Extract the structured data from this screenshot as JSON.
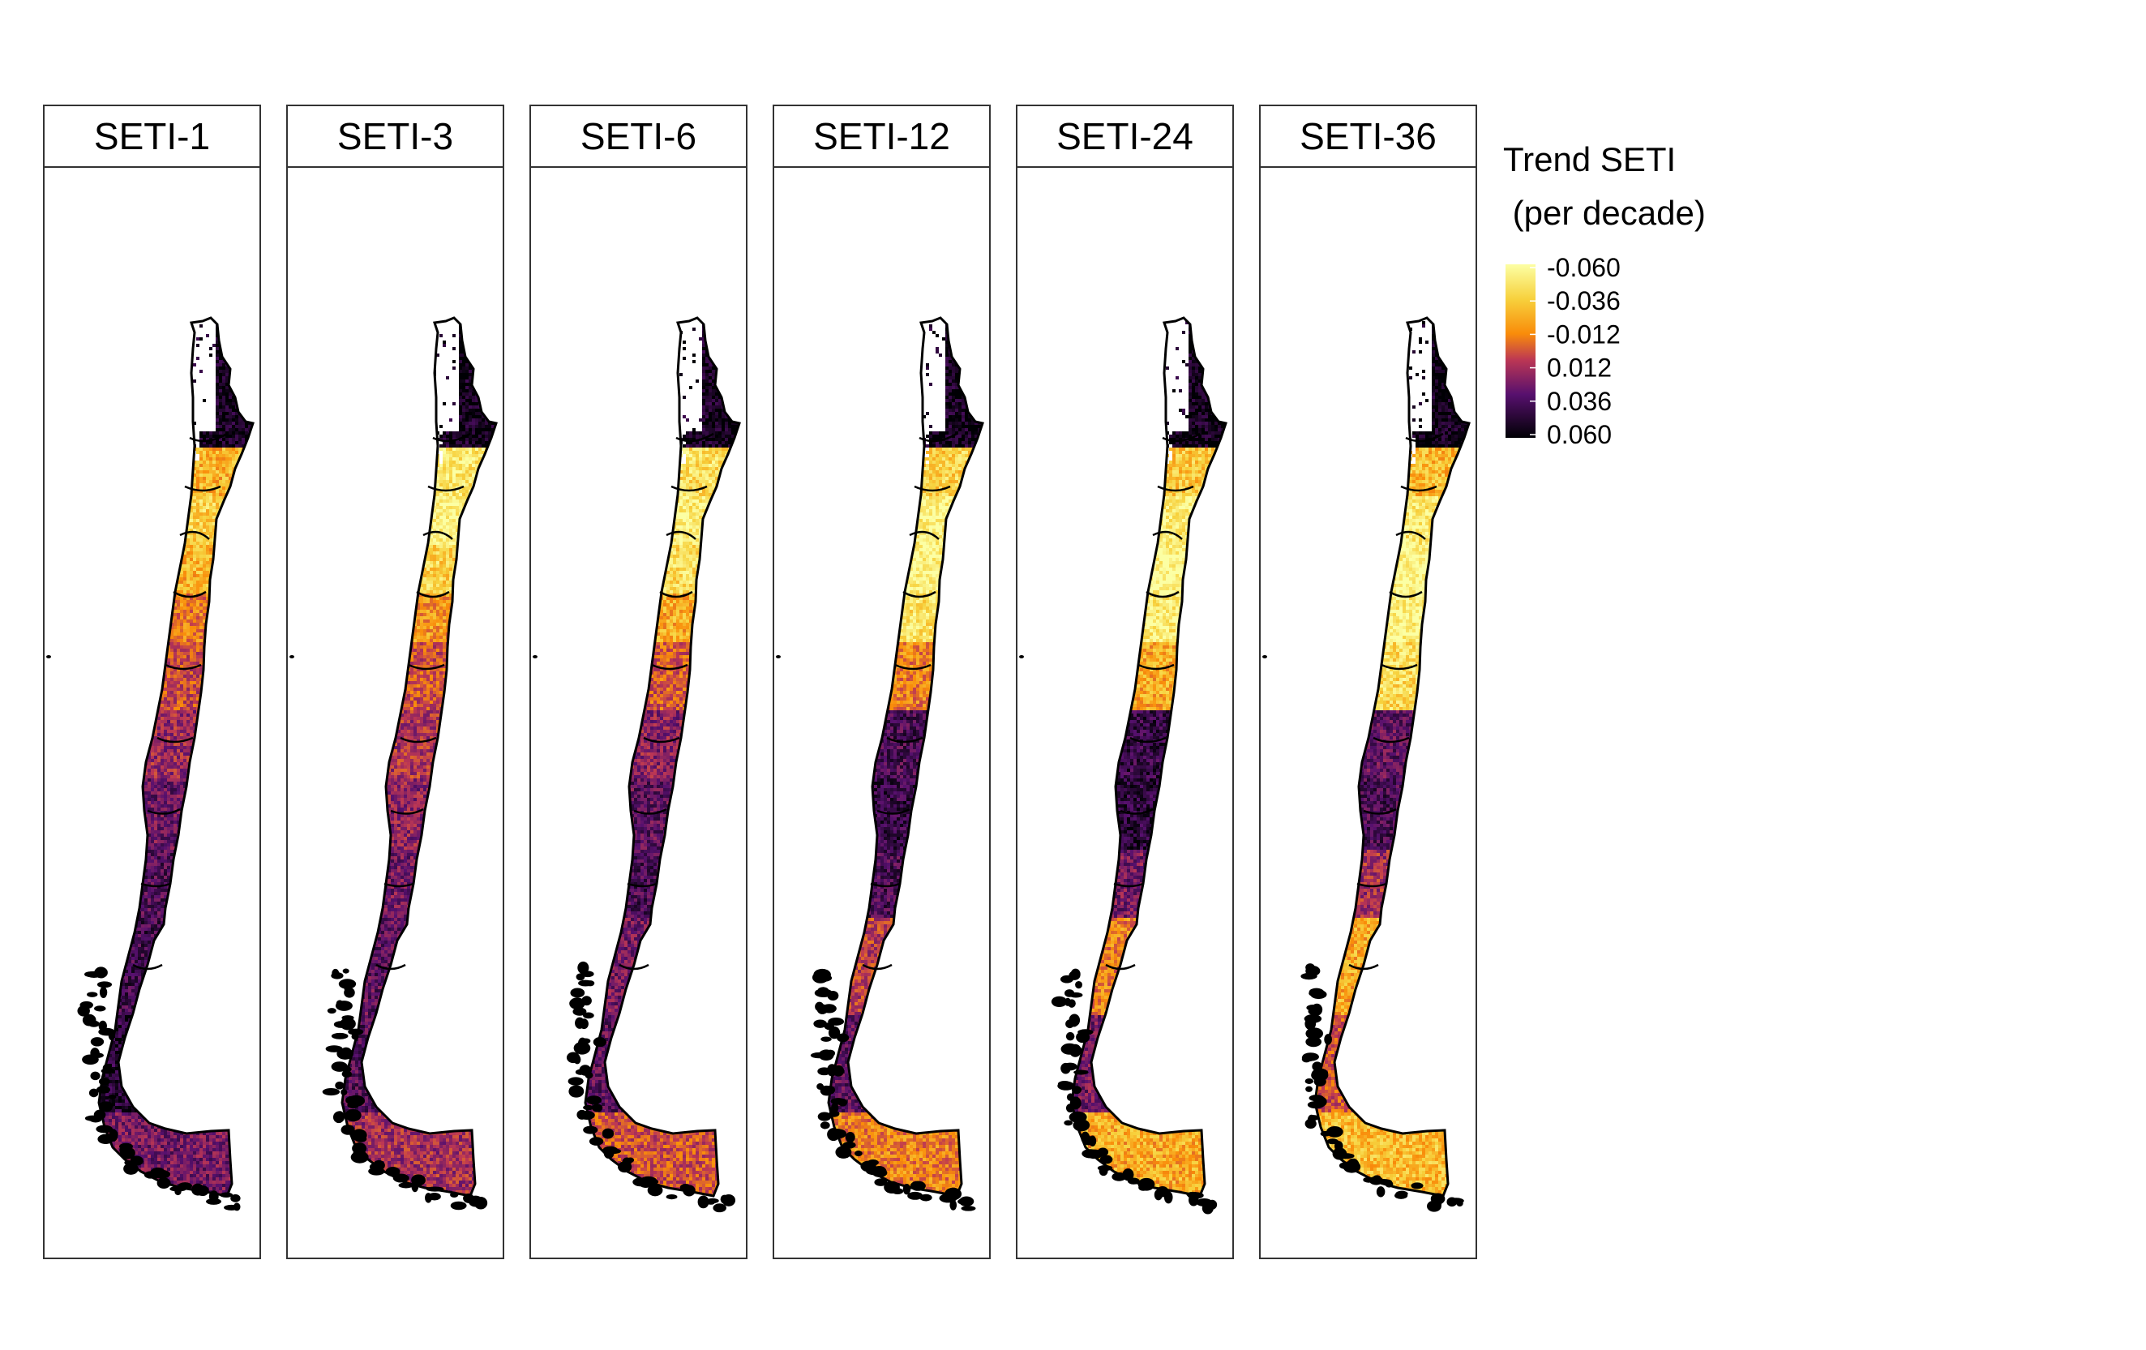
{
  "panels": [
    {
      "title": "SETI-1",
      "profile": {
        "north": [
          0.05,
          0.07
        ],
        "central": [
          0.72,
          0.82,
          0.72,
          0.6
        ],
        "south": [
          0.48,
          0.38,
          0.28,
          0.22
        ],
        "far_south": [
          0.18,
          0.12,
          0.3
        ]
      }
    },
    {
      "title": "SETI-3",
      "profile": {
        "north": [
          0.05,
          0.07
        ],
        "central": [
          0.9,
          0.95,
          0.82,
          0.65
        ],
        "south": [
          0.5,
          0.42,
          0.35,
          0.3
        ],
        "far_south": [
          0.25,
          0.22,
          0.4
        ]
      }
    },
    {
      "title": "SETI-6",
      "profile": {
        "north": [
          0.06,
          0.06
        ],
        "central": [
          0.86,
          0.92,
          0.85,
          0.7
        ],
        "south": [
          0.52,
          0.35,
          0.25,
          0.2
        ],
        "far_south": [
          0.3,
          0.25,
          0.5
        ]
      }
    },
    {
      "title": "SETI-12",
      "profile": {
        "north": [
          0.06,
          0.05
        ],
        "central": [
          0.82,
          0.95,
          0.95,
          0.88
        ],
        "south": [
          0.6,
          0.2,
          0.15,
          0.2
        ],
        "far_south": [
          0.45,
          0.25,
          0.6
        ]
      }
    },
    {
      "title": "SETI-24",
      "profile": {
        "north": [
          0.05,
          0.04
        ],
        "central": [
          0.78,
          0.92,
          0.96,
          0.92
        ],
        "south": [
          0.7,
          0.15,
          0.12,
          0.3
        ],
        "far_south": [
          0.6,
          0.3,
          0.7
        ]
      }
    },
    {
      "title": "SETI-36",
      "profile": {
        "north": [
          0.04,
          0.04
        ],
        "central": [
          0.74,
          0.9,
          0.97,
          0.95
        ],
        "south": [
          0.85,
          0.25,
          0.2,
          0.4
        ],
        "far_south": [
          0.7,
          0.5,
          0.75
        ]
      }
    }
  ],
  "legend": {
    "title_line1": "Trend SETI",
    "title_line2": " (per decade)",
    "ticks": [
      "-0.060",
      "-0.036",
      "-0.012",
      "0.012",
      "0.036",
      "0.060"
    ],
    "colors": [
      "#fcffa4",
      "#f98c0a",
      "#bc3754",
      "#57106e",
      "#000004"
    ]
  }
}
